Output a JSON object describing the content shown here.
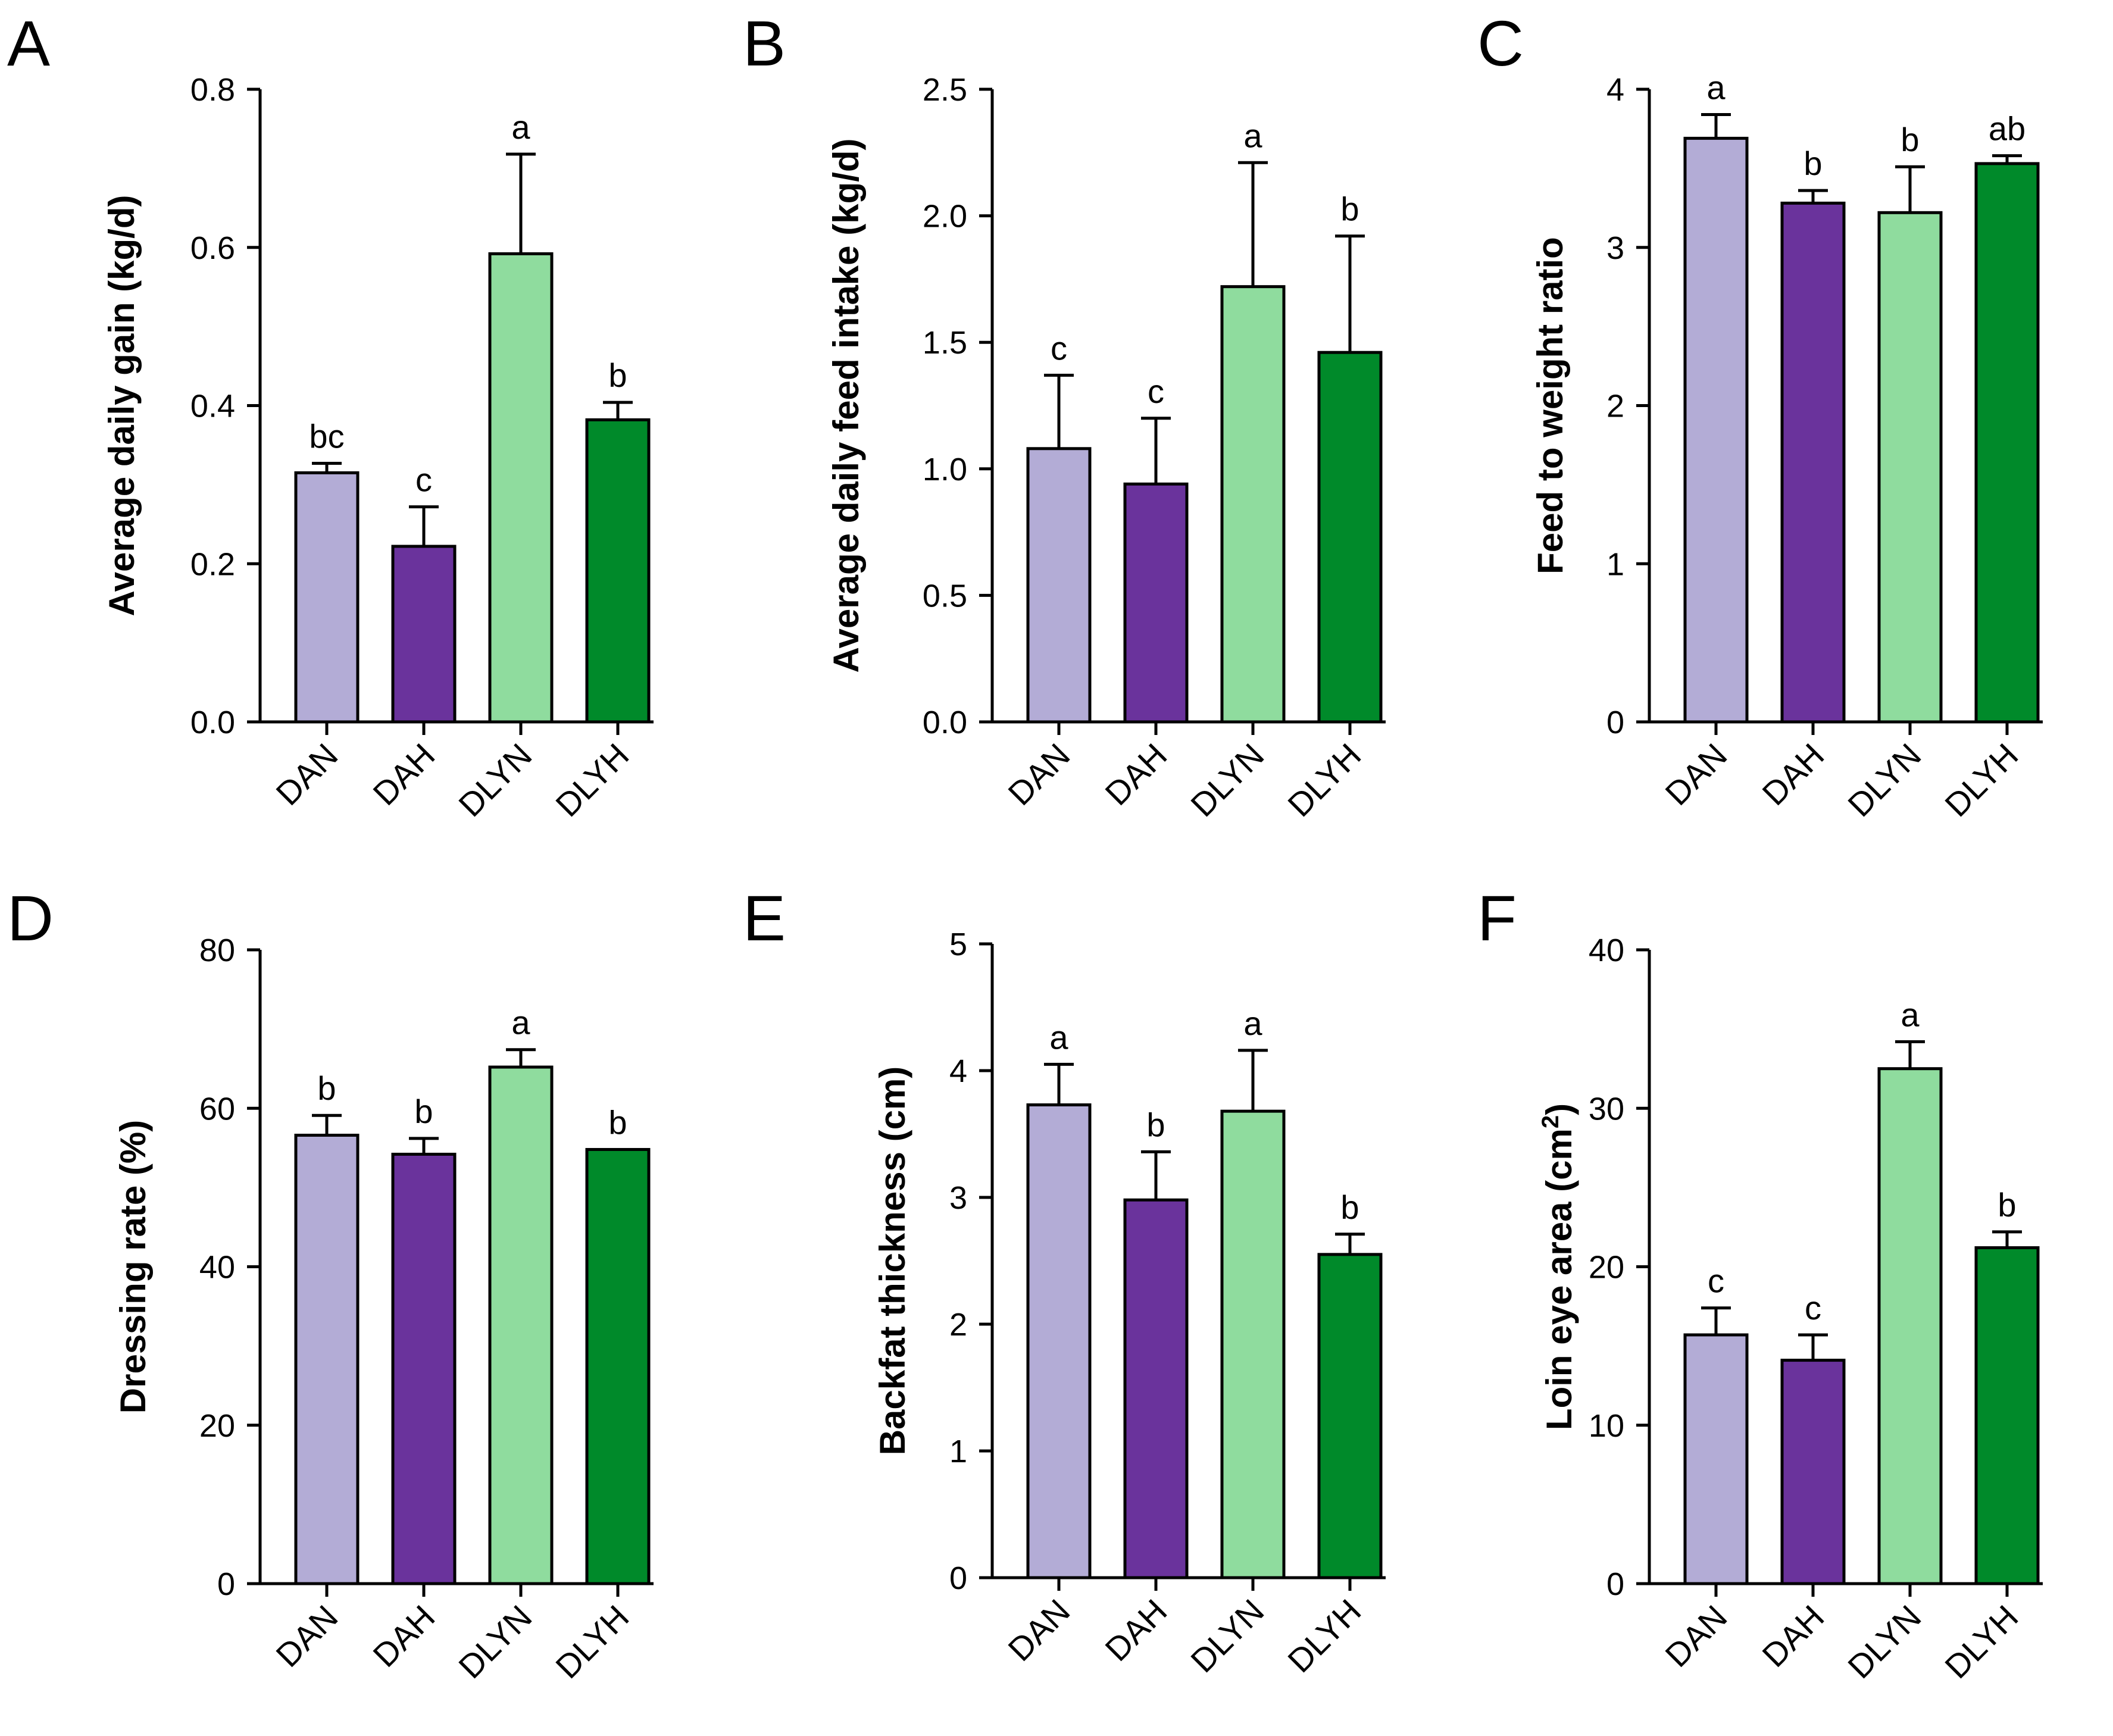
{
  "colors": {
    "DAN": "#b3acd6",
    "DAH": "#6a339c",
    "DLYN": "#8fdc9e",
    "DLYH": "#008a2a"
  },
  "chart_data": [
    {
      "panel": "A",
      "type": "bar",
      "categories": [
        "DAN",
        "DAH",
        "DLYN",
        "DLYH"
      ],
      "values": [
        0.315,
        0.222,
        0.592,
        0.382
      ],
      "errors": [
        0.012,
        0.05,
        0.126,
        0.022
      ],
      "significance": [
        "bc",
        "c",
        "a",
        "b"
      ],
      "ylabel": "Average daily gain (kg/d)",
      "ylim": [
        0,
        0.8
      ],
      "yticks": [
        "0.0",
        "0.2",
        "0.4",
        "0.6",
        "0.8"
      ]
    },
    {
      "panel": "B",
      "type": "bar",
      "categories": [
        "DAN",
        "DAH",
        "DLYN",
        "DLYH"
      ],
      "values": [
        1.08,
        0.94,
        1.72,
        1.46
      ],
      "errors": [
        0.29,
        0.26,
        0.49,
        0.46
      ],
      "significance": [
        "c",
        "c",
        "a",
        "b"
      ],
      "ylabel": "Average daily feed intake (kg/d)",
      "ylim": [
        0,
        2.5
      ],
      "yticks": [
        "0.0",
        "0.5",
        "1.0",
        "1.5",
        "2.0",
        "2.5"
      ]
    },
    {
      "panel": "C",
      "type": "bar",
      "categories": [
        "DAN",
        "DAH",
        "DLYN",
        "DLYH"
      ],
      "values": [
        3.69,
        3.28,
        3.22,
        3.53
      ],
      "errors": [
        0.15,
        0.08,
        0.29,
        0.05
      ],
      "significance": [
        "a",
        "b",
        "b",
        "ab"
      ],
      "ylabel": "Feed to weight ratio",
      "ylim": [
        0,
        4
      ],
      "yticks": [
        "0",
        "1",
        "2",
        "3",
        "4"
      ]
    },
    {
      "panel": "D",
      "type": "bar",
      "categories": [
        "DAN",
        "DAH",
        "DLYN",
        "DLYH"
      ],
      "values": [
        56.6,
        54.2,
        65.2,
        54.8
      ],
      "errors": [
        2.5,
        2.0,
        2.2,
        0.0
      ],
      "significance": [
        "b",
        "b",
        "a",
        "b"
      ],
      "ylabel": "Dressing rate (%)",
      "ylim": [
        0,
        80
      ],
      "yticks": [
        "0",
        "20",
        "40",
        "60",
        "80"
      ]
    },
    {
      "panel": "E",
      "type": "bar",
      "categories": [
        "DAN",
        "DAH",
        "DLYN",
        "DLYH"
      ],
      "values": [
        3.73,
        2.98,
        3.68,
        2.55
      ],
      "errors": [
        0.32,
        0.38,
        0.48,
        0.16
      ],
      "significance": [
        "a",
        "b",
        "a",
        "b"
      ],
      "ylabel": "Backfat thickness (cm)",
      "ylim": [
        0,
        5
      ],
      "yticks": [
        "0",
        "1",
        "2",
        "3",
        "4",
        "5"
      ]
    },
    {
      "panel": "F",
      "type": "bar",
      "categories": [
        "DAN",
        "DAH",
        "DLYN",
        "DLYH"
      ],
      "values": [
        15.7,
        14.1,
        32.5,
        21.2
      ],
      "errors": [
        1.7,
        1.6,
        1.7,
        1.0
      ],
      "significance": [
        "c",
        "c",
        "a",
        "b"
      ],
      "ylabel": "Loin eye area (cm",
      "ylabel_superscript": "2",
      "ylabel_suffix": ")",
      "ylim": [
        0,
        40
      ],
      "yticks": [
        "0",
        "10",
        "20",
        "30",
        "40"
      ]
    }
  ]
}
